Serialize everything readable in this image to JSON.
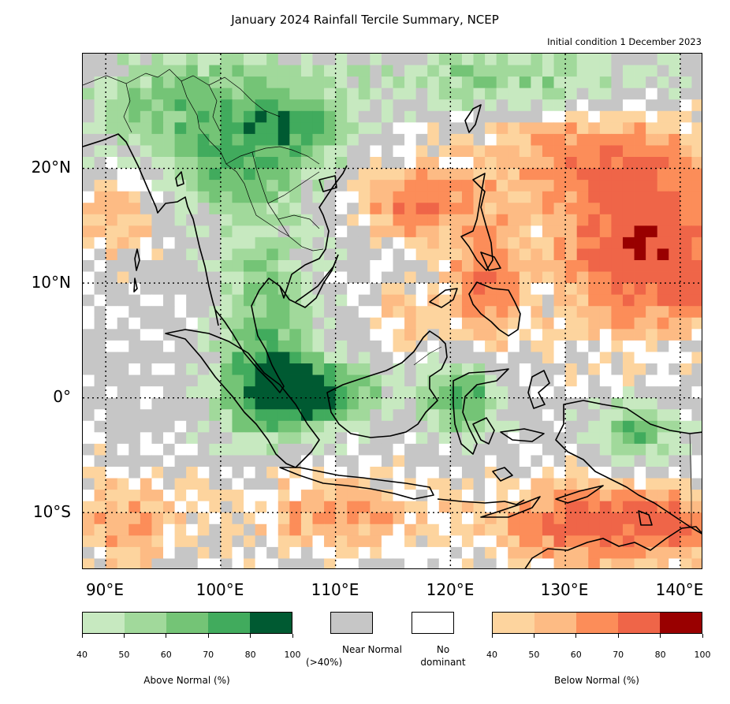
{
  "title": "January 2024 Rainfall Tercile Summary, NCEP",
  "subtitle": "Initial condition 1 December 2023",
  "map": {
    "lon_range": [
      88,
      142
    ],
    "lat_range": [
      -15,
      30
    ],
    "lon_ticks": [
      {
        "value": 90,
        "label": "90°E"
      },
      {
        "value": 100,
        "label": "100°E"
      },
      {
        "value": 110,
        "label": "110°E"
      },
      {
        "value": 120,
        "label": "120°E"
      },
      {
        "value": 130,
        "label": "130°E"
      },
      {
        "value": 140,
        "label": "140°E"
      }
    ],
    "lat_ticks": [
      {
        "value": 20,
        "label": "20°N"
      },
      {
        "value": 10,
        "label": "10°N"
      },
      {
        "value": 0,
        "label": "0°"
      },
      {
        "value": -10,
        "label": "10°S"
      }
    ],
    "gridlines": "dotted",
    "coastlines": true,
    "country_borders": true
  },
  "legend": {
    "above": {
      "caption": "Above Normal (%)",
      "colors": [
        "#c7e9c0",
        "#a1d99b",
        "#74c476",
        "#41ab5d",
        "#005a32"
      ],
      "ticks": [
        "40",
        "50",
        "60",
        "70",
        "80",
        "100"
      ]
    },
    "near": {
      "caption_line1": "Near Normal",
      "caption_line2": "(>40%)",
      "color": "#c6c6c6"
    },
    "none": {
      "caption_line1": "No",
      "caption_line2": "dominant",
      "color": "#ffffff"
    },
    "below": {
      "caption": "Below Normal (%)",
      "colors": [
        "#fdd49e",
        "#fdbb84",
        "#fc8d59",
        "#ef6548",
        "#990000"
      ],
      "ticks": [
        "40",
        "50",
        "60",
        "70",
        "80",
        "100"
      ]
    }
  }
}
